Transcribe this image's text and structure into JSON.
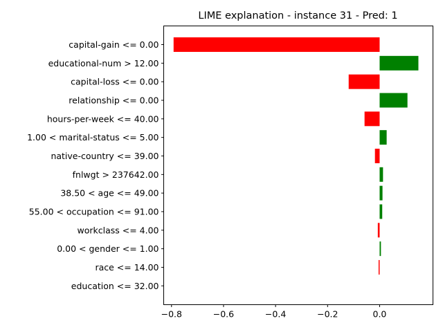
{
  "chart_data": {
    "type": "bar",
    "orientation": "horizontal",
    "title": "LIME explanation - instance 31 - Pred: 1",
    "xlabel": "",
    "ylabel": "",
    "xlim": [
      -0.83,
      0.205
    ],
    "xticks": [
      -0.8,
      -0.6,
      -0.4,
      -0.2,
      0.0
    ],
    "xtick_labels": [
      "−0.8",
      "−0.6",
      "−0.4",
      "−0.2",
      "0.0"
    ],
    "grid": false,
    "legend": "none",
    "colors": {
      "positive": "#008000",
      "negative": "#ff0000"
    },
    "categories": [
      "capital-gain <= 0.00",
      "educational-num > 12.00",
      "capital-loss <= 0.00",
      "relationship <= 0.00",
      "hours-per-week <= 40.00",
      "1.00 < marital-status <= 5.00",
      "native-country <= 39.00",
      "fnlwgt > 237642.00",
      "38.50 < age <= 49.00",
      "55.00 < occupation <= 91.00",
      "workclass <= 4.00",
      "0.00 < gender <= 1.00",
      "race <= 14.00",
      "education <= 32.00"
    ],
    "values": [
      -0.792,
      0.149,
      -0.119,
      0.107,
      -0.058,
      0.027,
      -0.018,
      0.013,
      0.011,
      0.01,
      -0.007,
      0.005,
      -0.004,
      0.0
    ]
  }
}
